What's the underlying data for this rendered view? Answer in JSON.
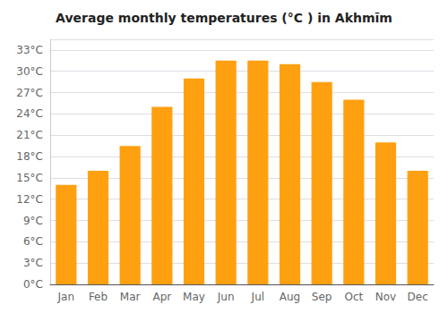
{
  "chart_data": {
    "type": "bar",
    "title": "Average monthly temperatures (°C ) in Akhmīm",
    "categories": [
      "Jan",
      "Feb",
      "Mar",
      "Apr",
      "May",
      "Jun",
      "Jul",
      "Aug",
      "Sep",
      "Oct",
      "Nov",
      "Dec"
    ],
    "values": [
      14.0,
      16.0,
      19.5,
      25.0,
      29.0,
      31.5,
      31.5,
      31.0,
      28.5,
      26.0,
      20.0,
      16.0
    ],
    "color": "#FFA010",
    "ylim": [
      0,
      34.5
    ],
    "yticks": [
      {
        "value": 0,
        "label": "0°C"
      },
      {
        "value": 3,
        "label": "3°C"
      },
      {
        "value": 6,
        "label": "6°C"
      },
      {
        "value": 9,
        "label": "9°C"
      },
      {
        "value": 12,
        "label": "12°C"
      },
      {
        "value": 15,
        "label": "15°C"
      },
      {
        "value": 18,
        "label": "18°C"
      },
      {
        "value": 21,
        "label": "21°C"
      },
      {
        "value": 24,
        "label": "24°C"
      },
      {
        "value": 27,
        "label": "27°C"
      },
      {
        "value": 30,
        "label": "30°C"
      },
      {
        "value": 33,
        "label": "33°C"
      }
    ],
    "grid": true
  }
}
